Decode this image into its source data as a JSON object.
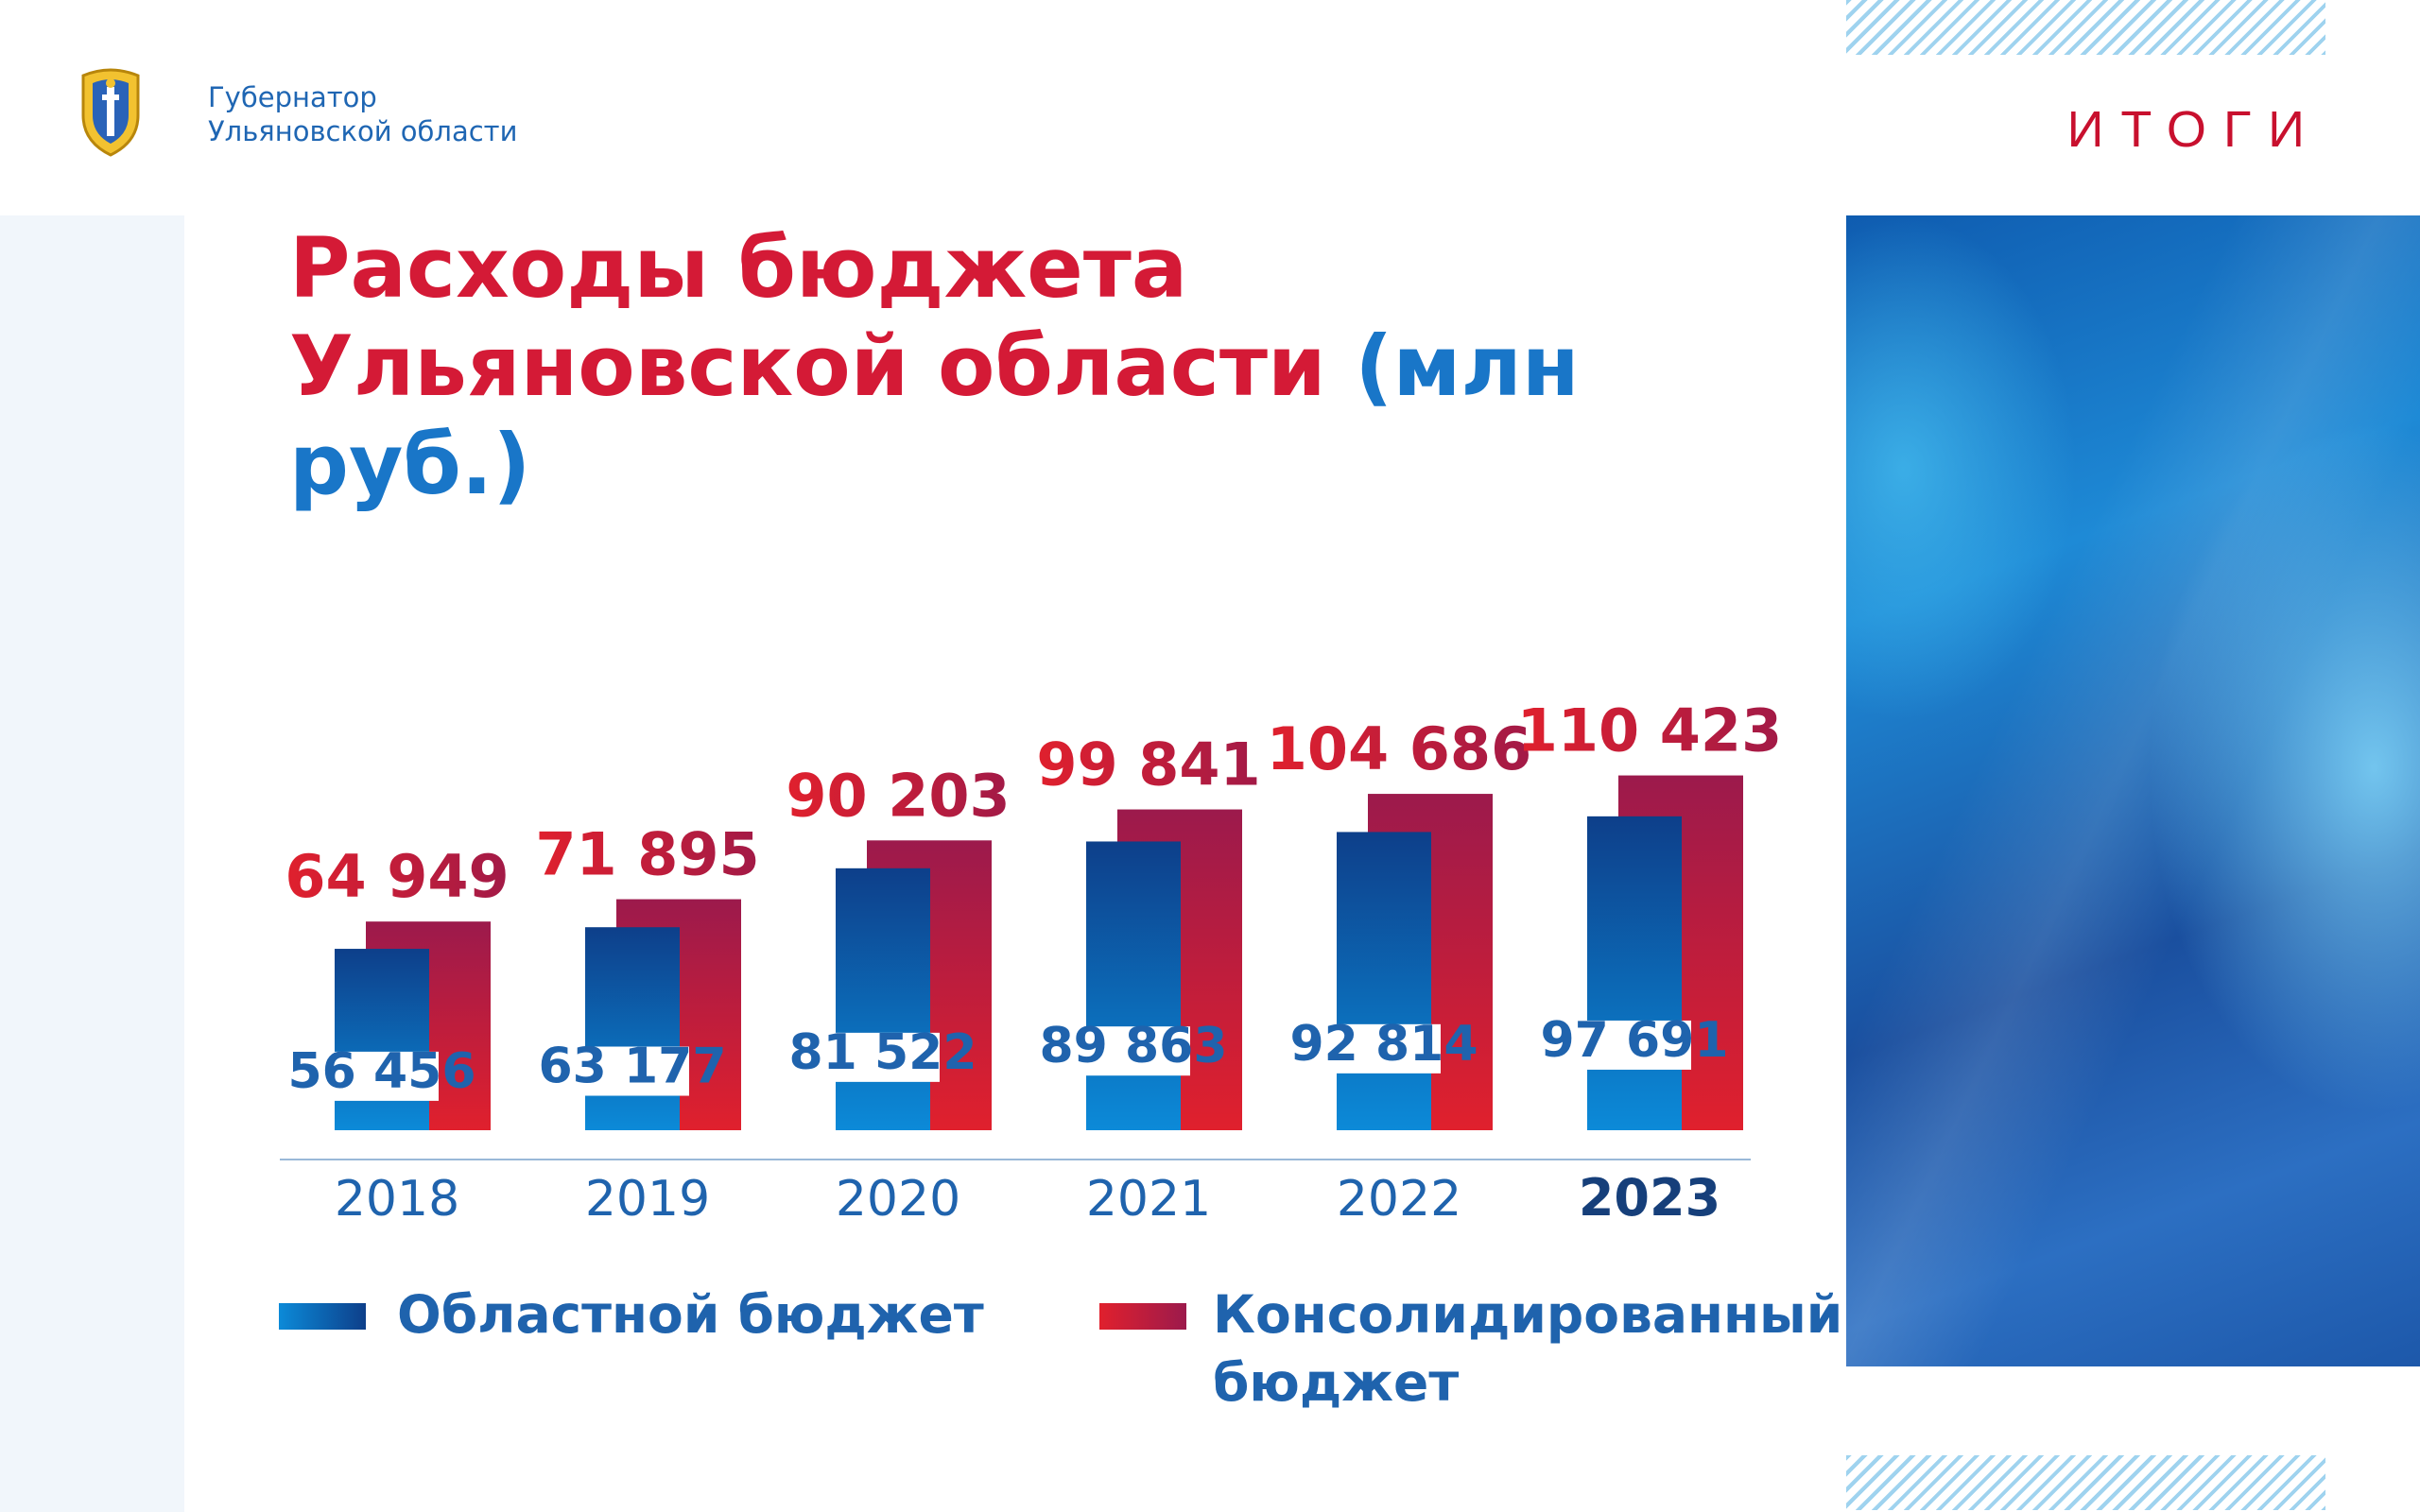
{
  "header": {
    "org_line1": "Губернатор",
    "org_line2": "Ульяновской области",
    "section": "ИТОГИ",
    "emblem_icon": "coat-of-arms-icon"
  },
  "title": {
    "main": "Расходы бюджета Ульяновской области",
    "unit": "(млн руб.)"
  },
  "colors": {
    "red": "#d41a36",
    "blue": "#1976c8",
    "regional_gradient": [
      "#0c8ad8",
      "#0d3f8a"
    ],
    "consolidated_gradient": [
      "#e0202d",
      "#9c1a4c"
    ]
  },
  "legend": {
    "regional": "Областной бюджет",
    "consolidated": "Консолидированный бюджет"
  },
  "chart_data": {
    "type": "bar",
    "categories": [
      "2018",
      "2019",
      "2020",
      "2021",
      "2022",
      "2023"
    ],
    "highlighted_category": "2023",
    "series": [
      {
        "name": "Консолидированный бюджет",
        "values": [
          64949,
          71895,
          90203,
          99841,
          104686,
          110423
        ],
        "labels": [
          "64 949",
          "71 895",
          "90 203",
          "99 841",
          "104 686",
          "110 423"
        ]
      },
      {
        "name": "Областной бюджет",
        "values": [
          56456,
          63177,
          81522,
          89863,
          92814,
          97691
        ],
        "labels": [
          "56 456",
          "63 177",
          "81 522",
          "89 863",
          "92 814",
          "97 691"
        ]
      }
    ],
    "ylim": [
      0,
      120000
    ],
    "grid": false,
    "legend_position": "bottom"
  }
}
